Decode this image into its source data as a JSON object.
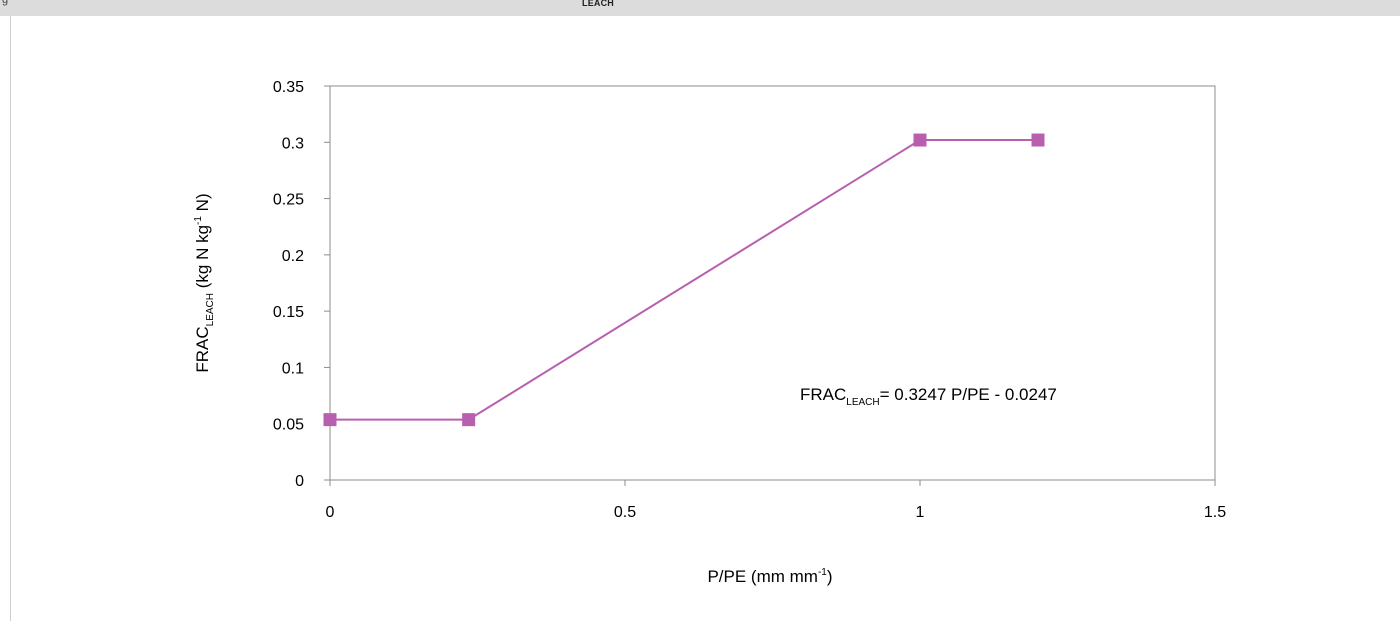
{
  "header": {
    "left_text": "g",
    "center_text": "LEACH"
  },
  "chart_data": {
    "type": "line",
    "ylabel": {
      "main": "FRAC",
      "sub": "LEACH",
      "units_pre": " (kg N kg",
      "units_sup": "-1",
      "units_post": " N)"
    },
    "xlabel": {
      "main": "P/PE (mm mm",
      "sup": "-1",
      "post": ")"
    },
    "xlim": [
      0,
      1.5
    ],
    "ylim": [
      0,
      0.35
    ],
    "x_ticks": [
      0,
      0.5,
      1,
      1.5
    ],
    "x_tick_labels": [
      "0",
      "0.5",
      "1",
      "1.5"
    ],
    "y_ticks": [
      0,
      0.05,
      0.1,
      0.15,
      0.2,
      0.25,
      0.3,
      0.35
    ],
    "y_tick_labels": [
      "0",
      "0.05",
      "0.1",
      "0.15",
      "0.2",
      "0.25",
      "0.3",
      "0.35"
    ],
    "series": [
      {
        "x": [
          0,
          0.235,
          1.0,
          1.2
        ],
        "y": [
          0.0536,
          0.0536,
          0.302,
          0.302
        ],
        "color": "#b85fb0",
        "marker": "square"
      }
    ],
    "annotation": {
      "pre": "FRAC",
      "sub": "LEACH",
      "post": "= 0.3247 P/PE - 0.0247"
    },
    "grid": false
  }
}
